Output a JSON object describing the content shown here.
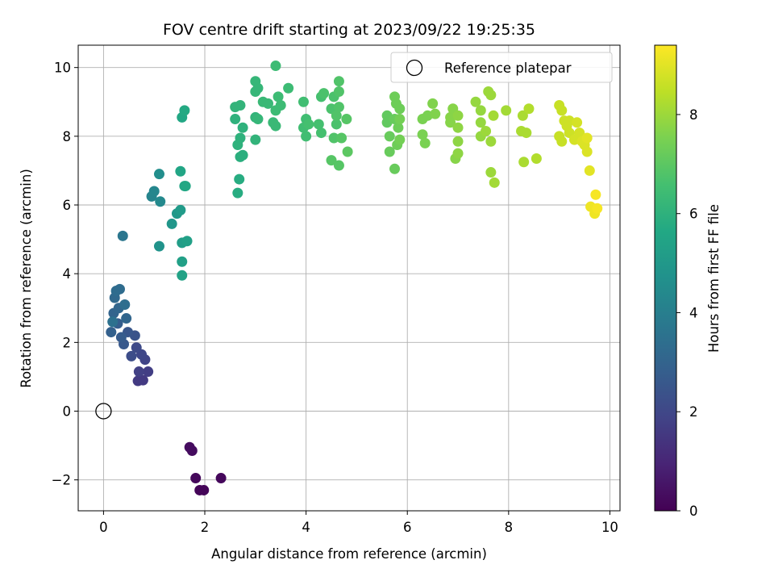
{
  "chart_data": {
    "type": "scatter",
    "title": "FOV centre drift starting at 2023/09/22 19:25:35",
    "xlabel": "Angular distance from reference (arcmin)",
    "ylabel": "Rotation from reference (arcmin)",
    "xlim": [
      -0.5,
      10.2
    ],
    "ylim": [
      -2.9,
      10.65
    ],
    "xticks": [
      0,
      2,
      4,
      6,
      8,
      10
    ],
    "yticks": [
      -2,
      0,
      2,
      4,
      6,
      8,
      10
    ],
    "xtick_labels": [
      "0",
      "2",
      "4",
      "6",
      "8",
      "10"
    ],
    "ytick_labels": [
      "−2",
      "0",
      "2",
      "4",
      "6",
      "8",
      "10"
    ],
    "grid": true,
    "legend": {
      "placement": "top-right",
      "entries": [
        "Reference platepar"
      ]
    },
    "reference_point": {
      "x": 0,
      "y": 0
    },
    "colorbar": {
      "label": "Hours from first FF file",
      "colormap": "viridis",
      "range": [
        0,
        9.4
      ],
      "ticks": [
        0,
        2,
        4,
        6,
        8
      ],
      "tick_labels": [
        "0",
        "2",
        "4",
        "6",
        "8"
      ]
    },
    "series": [
      {
        "points": [
          [
            1.7,
            -1.05,
            0.3
          ],
          [
            1.75,
            -1.15,
            0.3
          ],
          [
            1.82,
            -1.95,
            0.2
          ],
          [
            1.9,
            -2.3,
            0.1
          ],
          [
            1.98,
            -2.3,
            0.1
          ],
          [
            2.32,
            -1.95,
            0.2
          ],
          [
            0.68,
            0.88,
            1.6
          ],
          [
            0.78,
            0.9,
            1.6
          ],
          [
            0.88,
            1.15,
            1.7
          ],
          [
            0.7,
            1.15,
            1.8
          ],
          [
            0.82,
            1.5,
            1.9
          ],
          [
            0.75,
            1.65,
            2.0
          ],
          [
            0.65,
            1.85,
            2.1
          ],
          [
            0.55,
            1.6,
            2.2
          ],
          [
            0.62,
            2.2,
            2.4
          ],
          [
            0.48,
            2.3,
            2.5
          ],
          [
            0.4,
            1.95,
            2.6
          ],
          [
            0.35,
            2.15,
            2.7
          ],
          [
            0.28,
            2.55,
            2.8
          ],
          [
            0.15,
            2.3,
            2.9
          ],
          [
            0.2,
            2.85,
            3.0
          ],
          [
            0.3,
            3.0,
            3.1
          ],
          [
            0.45,
            2.7,
            3.1
          ],
          [
            0.22,
            3.3,
            3.2
          ],
          [
            0.25,
            3.5,
            3.3
          ],
          [
            0.32,
            3.55,
            3.3
          ],
          [
            0.42,
            3.1,
            3.4
          ],
          [
            0.18,
            2.6,
            3.5
          ],
          [
            0.38,
            5.1,
            3.7
          ],
          [
            0.95,
            6.25,
            4.2
          ],
          [
            1.0,
            6.4,
            4.3
          ],
          [
            1.12,
            6.1,
            4.4
          ],
          [
            1.1,
            6.9,
            4.6
          ],
          [
            1.1,
            4.8,
            4.8
          ],
          [
            1.35,
            5.45,
            4.9
          ],
          [
            1.45,
            5.75,
            5.0
          ],
          [
            1.52,
            5.85,
            5.1
          ],
          [
            1.55,
            4.9,
            5.2
          ],
          [
            1.65,
            4.95,
            5.3
          ],
          [
            1.55,
            4.35,
            5.3
          ],
          [
            1.55,
            3.95,
            5.4
          ],
          [
            1.52,
            6.98,
            5.5
          ],
          [
            1.6,
            6.55,
            5.5
          ],
          [
            1.62,
            6.55,
            5.6
          ],
          [
            1.55,
            8.55,
            5.6
          ],
          [
            1.6,
            8.75,
            5.7
          ],
          [
            2.65,
            6.35,
            5.8
          ],
          [
            2.68,
            6.75,
            5.8
          ],
          [
            2.7,
            7.4,
            5.9
          ],
          [
            2.75,
            7.45,
            5.9
          ],
          [
            2.65,
            7.75,
            6.0
          ],
          [
            2.7,
            7.95,
            6.0
          ],
          [
            2.75,
            8.25,
            6.0
          ],
          [
            2.6,
            8.5,
            6.0
          ],
          [
            2.6,
            8.85,
            6.1
          ],
          [
            2.7,
            8.9,
            6.1
          ],
          [
            3.0,
            7.9,
            6.1
          ],
          [
            3.0,
            8.55,
            6.1
          ],
          [
            3.05,
            8.5,
            6.2
          ],
          [
            3.0,
            9.3,
            6.2
          ],
          [
            3.0,
            9.6,
            6.2
          ],
          [
            3.05,
            9.4,
            6.2
          ],
          [
            3.15,
            9.0,
            6.3
          ],
          [
            3.25,
            8.95,
            6.3
          ],
          [
            3.35,
            8.4,
            6.3
          ],
          [
            3.4,
            8.3,
            6.3
          ],
          [
            3.4,
            8.75,
            6.4
          ],
          [
            3.45,
            9.15,
            6.4
          ],
          [
            3.5,
            8.9,
            6.4
          ],
          [
            3.65,
            9.4,
            6.4
          ],
          [
            3.4,
            10.05,
            6.4
          ],
          [
            3.95,
            9.0,
            6.5
          ],
          [
            3.95,
            8.25,
            6.5
          ],
          [
            4.0,
            8.0,
            6.5
          ],
          [
            4.0,
            8.5,
            6.5
          ],
          [
            4.05,
            8.35,
            6.6
          ],
          [
            4.25,
            8.35,
            6.6
          ],
          [
            4.3,
            8.1,
            6.6
          ],
          [
            4.3,
            9.15,
            6.6
          ],
          [
            4.35,
            9.25,
            6.7
          ],
          [
            4.5,
            8.8,
            6.7
          ],
          [
            4.55,
            9.15,
            6.7
          ],
          [
            4.6,
            8.35,
            6.7
          ],
          [
            4.55,
            7.95,
            6.8
          ],
          [
            4.6,
            8.6,
            6.8
          ],
          [
            4.65,
            9.6,
            6.8
          ],
          [
            4.65,
            9.3,
            6.8
          ],
          [
            4.65,
            8.85,
            6.8
          ],
          [
            4.5,
            7.3,
            6.9
          ],
          [
            4.65,
            7.15,
            6.9
          ],
          [
            4.7,
            7.95,
            6.9
          ],
          [
            4.8,
            8.5,
            6.9
          ],
          [
            4.82,
            7.55,
            7.0
          ],
          [
            5.6,
            8.6,
            7.1
          ],
          [
            5.6,
            8.4,
            7.1
          ],
          [
            5.65,
            8.0,
            7.2
          ],
          [
            5.65,
            7.55,
            7.2
          ],
          [
            5.75,
            7.05,
            7.2
          ],
          [
            5.75,
            8.5,
            7.2
          ],
          [
            5.75,
            9.15,
            7.3
          ],
          [
            5.78,
            8.95,
            7.3
          ],
          [
            5.8,
            7.75,
            7.3
          ],
          [
            5.82,
            8.25,
            7.3
          ],
          [
            5.85,
            8.8,
            7.3
          ],
          [
            5.85,
            8.5,
            7.4
          ],
          [
            5.85,
            7.9,
            7.4
          ],
          [
            6.3,
            8.05,
            7.5
          ],
          [
            6.35,
            7.8,
            7.5
          ],
          [
            6.3,
            8.5,
            7.5
          ],
          [
            6.4,
            8.6,
            7.5
          ],
          [
            6.5,
            8.95,
            7.6
          ],
          [
            6.55,
            8.65,
            7.6
          ],
          [
            6.85,
            8.55,
            7.7
          ],
          [
            6.85,
            8.4,
            7.7
          ],
          [
            6.9,
            8.8,
            7.7
          ],
          [
            6.95,
            7.35,
            7.7
          ],
          [
            7.0,
            8.25,
            7.8
          ],
          [
            7.0,
            7.5,
            7.8
          ],
          [
            7.0,
            7.85,
            7.8
          ],
          [
            7.0,
            8.6,
            7.8
          ],
          [
            7.35,
            9.0,
            7.9
          ],
          [
            7.45,
            8.4,
            7.9
          ],
          [
            7.45,
            8.0,
            7.9
          ],
          [
            7.45,
            8.75,
            7.9
          ],
          [
            7.55,
            8.15,
            8.0
          ],
          [
            7.6,
            9.3,
            8.0
          ],
          [
            7.65,
            9.2,
            8.0
          ],
          [
            7.65,
            7.85,
            8.0
          ],
          [
            7.65,
            6.95,
            8.0
          ],
          [
            7.7,
            8.6,
            8.1
          ],
          [
            7.72,
            6.65,
            8.1
          ],
          [
            7.95,
            8.75,
            8.1
          ],
          [
            8.25,
            8.15,
            8.2
          ],
          [
            8.28,
            8.6,
            8.2
          ],
          [
            8.3,
            7.25,
            8.2
          ],
          [
            8.35,
            8.1,
            8.2
          ],
          [
            8.4,
            8.8,
            8.3
          ],
          [
            8.55,
            7.35,
            8.3
          ],
          [
            9.0,
            8.9,
            8.6
          ],
          [
            9.0,
            8.0,
            8.6
          ],
          [
            9.05,
            8.75,
            8.6
          ],
          [
            9.05,
            7.85,
            8.6
          ],
          [
            9.1,
            8.45,
            8.7
          ],
          [
            9.15,
            8.3,
            8.7
          ],
          [
            9.2,
            8.1,
            8.7
          ],
          [
            9.2,
            8.45,
            8.7
          ],
          [
            9.3,
            7.9,
            8.8
          ],
          [
            9.35,
            8.4,
            8.8
          ],
          [
            9.4,
            8.1,
            8.8
          ],
          [
            9.45,
            7.85,
            8.9
          ],
          [
            9.5,
            7.75,
            8.9
          ],
          [
            9.55,
            7.55,
            8.9
          ],
          [
            9.55,
            7.95,
            9.0
          ],
          [
            9.6,
            7.0,
            9.0
          ],
          [
            9.62,
            5.95,
            9.2
          ],
          [
            9.7,
            5.75,
            9.2
          ],
          [
            9.72,
            6.3,
            9.3
          ],
          [
            9.75,
            5.9,
            9.3
          ]
        ]
      }
    ]
  }
}
